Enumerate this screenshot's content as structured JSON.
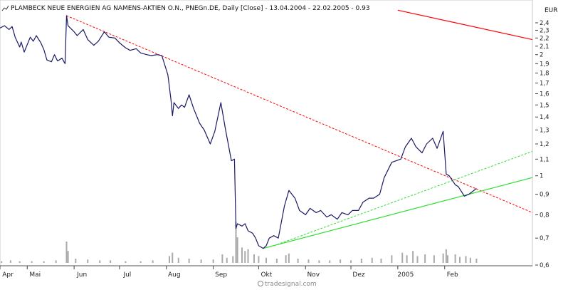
{
  "header": {
    "title": "PLAMBECK NEUE ENERGIEN AG NAMENS-AKTIEN O.N., PNEGn.DE, Daily [Close] - 13.04.2004 - 22.02.2005 - 0.93",
    "currency": "EUR"
  },
  "watermark": "tradesignal.com",
  "icon": "line-chart-icon",
  "colors": {
    "price": "#1a1a66",
    "resistance": "#ff0000",
    "support": "#33dd33",
    "volume": "#aaaaaa"
  },
  "chart_data": {
    "type": "line",
    "y_scale": "log",
    "y_ticks": [
      "0,6",
      "0,7",
      "0,8",
      "0,9",
      "1",
      "1,1",
      "1,2",
      "1,3",
      "1,4",
      "1,5",
      "1,6",
      "1,7",
      "1,8",
      "1,9",
      "2",
      "2,1",
      "2,2",
      "2,3",
      "2,4"
    ],
    "ylim": [
      0.6,
      2.5
    ],
    "x_ticks": [
      "Apr",
      "Mai",
      "Jun",
      "Jul",
      "Aug",
      "Sep",
      "Okt",
      "Nov",
      "Dez",
      "2005",
      "Feb"
    ],
    "series": [
      {
        "values": [
          [
            "2004-04-13",
            2.33
          ],
          [
            "2004-04-16",
            2.36
          ],
          [
            "2004-04-19",
            2.31
          ],
          [
            "2004-04-21",
            2.35
          ],
          [
            "2004-04-23",
            2.21
          ],
          [
            "2004-04-26",
            2.09
          ],
          [
            "2004-04-27",
            2.15
          ],
          [
            "2004-04-29",
            2.03
          ],
          [
            "2004-05-03",
            2.21
          ],
          [
            "2004-05-05",
            2.16
          ],
          [
            "2004-05-07",
            2.23
          ],
          [
            "2004-05-10",
            2.14
          ],
          [
            "2004-05-12",
            2.06
          ],
          [
            "2004-05-14",
            1.94
          ],
          [
            "2004-05-17",
            1.92
          ],
          [
            "2004-05-19",
            2.0
          ],
          [
            "2004-05-21",
            1.93
          ],
          [
            "2004-05-24",
            1.96
          ],
          [
            "2004-05-26",
            1.9
          ],
          [
            "2004-05-27",
            2.5
          ],
          [
            "2004-05-28",
            2.36
          ],
          [
            "2004-06-01",
            2.28
          ],
          [
            "2004-06-03",
            2.23
          ],
          [
            "2004-06-07",
            2.31
          ],
          [
            "2004-06-10",
            2.18
          ],
          [
            "2004-06-14",
            2.11
          ],
          [
            "2004-06-17",
            2.16
          ],
          [
            "2004-06-21",
            2.28
          ],
          [
            "2004-06-24",
            2.21
          ],
          [
            "2004-06-28",
            2.2
          ],
          [
            "2004-07-01",
            2.14
          ],
          [
            "2004-07-05",
            2.08
          ],
          [
            "2004-07-08",
            2.05
          ],
          [
            "2004-07-12",
            2.07
          ],
          [
            "2004-07-15",
            2.02
          ],
          [
            "2004-07-19",
            2.0
          ],
          [
            "2004-07-22",
            1.99
          ],
          [
            "2004-07-26",
            2.0
          ],
          [
            "2004-07-29",
            1.99
          ],
          [
            "2004-08-02",
            1.78
          ],
          [
            "2004-08-04",
            1.55
          ],
          [
            "2004-08-05",
            1.41
          ],
          [
            "2004-08-06",
            1.52
          ],
          [
            "2004-08-09",
            1.47
          ],
          [
            "2004-08-11",
            1.5
          ],
          [
            "2004-08-13",
            1.48
          ],
          [
            "2004-08-16",
            1.59
          ],
          [
            "2004-08-19",
            1.47
          ],
          [
            "2004-08-23",
            1.35
          ],
          [
            "2004-08-26",
            1.3
          ],
          [
            "2004-08-30",
            1.2
          ],
          [
            "2004-09-02",
            1.29
          ],
          [
            "2004-09-06",
            1.52
          ],
          [
            "2004-09-09",
            1.31
          ],
          [
            "2004-09-13",
            1.09
          ],
          [
            "2004-09-15",
            1.1
          ],
          [
            "2004-09-16",
            0.74
          ],
          [
            "2004-09-17",
            0.76
          ],
          [
            "2004-09-20",
            0.75
          ],
          [
            "2004-09-22",
            0.76
          ],
          [
            "2004-09-24",
            0.73
          ],
          [
            "2004-09-27",
            0.72
          ],
          [
            "2004-09-29",
            0.7
          ],
          [
            "2004-10-01",
            0.67
          ],
          [
            "2004-10-04",
            0.66
          ],
          [
            "2004-10-06",
            0.67
          ],
          [
            "2004-10-08",
            0.7
          ],
          [
            "2004-10-11",
            0.71
          ],
          [
            "2004-10-14",
            0.7
          ],
          [
            "2004-10-18",
            0.84
          ],
          [
            "2004-10-21",
            0.92
          ],
          [
            "2004-10-25",
            0.88
          ],
          [
            "2004-10-28",
            0.82
          ],
          [
            "2004-11-01",
            0.8
          ],
          [
            "2004-11-04",
            0.83
          ],
          [
            "2004-11-08",
            0.81
          ],
          [
            "2004-11-11",
            0.82
          ],
          [
            "2004-11-15",
            0.79
          ],
          [
            "2004-11-18",
            0.8
          ],
          [
            "2004-11-22",
            0.78
          ],
          [
            "2004-11-25",
            0.81
          ],
          [
            "2004-11-29",
            0.8
          ],
          [
            "2004-12-02",
            0.82
          ],
          [
            "2004-12-06",
            0.82
          ],
          [
            "2004-12-09",
            0.86
          ],
          [
            "2004-12-13",
            0.88
          ],
          [
            "2004-12-16",
            0.88
          ],
          [
            "2004-12-20",
            0.9
          ],
          [
            "2004-12-23",
            0.99
          ],
          [
            "2004-12-28",
            1.08
          ],
          [
            "2005-01-03",
            1.1
          ],
          [
            "2005-01-06",
            1.18
          ],
          [
            "2005-01-10",
            1.24
          ],
          [
            "2005-01-13",
            1.18
          ],
          [
            "2005-01-17",
            1.14
          ],
          [
            "2005-01-20",
            1.2
          ],
          [
            "2005-01-24",
            1.24
          ],
          [
            "2005-01-27",
            1.17
          ],
          [
            "2005-01-31",
            1.29
          ],
          [
            "2005-02-02",
            1.01
          ],
          [
            "2005-02-04",
            1.0
          ],
          [
            "2005-02-08",
            0.95
          ],
          [
            "2005-02-10",
            0.94
          ],
          [
            "2005-02-14",
            0.89
          ],
          [
            "2005-02-17",
            0.9
          ],
          [
            "2005-02-22",
            0.93
          ]
        ]
      }
    ],
    "trendlines": [
      {
        "style": "dashed",
        "color": "red",
        "from": [
          "2004-05-27",
          2.5
        ],
        "to": [
          "2005-03-31",
          0.81
        ]
      },
      {
        "style": "solid",
        "color": "red",
        "from": [
          "2005-01-01",
          2.58
        ],
        "to": [
          "2005-03-31",
          2.18
        ]
      },
      {
        "style": "solid",
        "color": "green",
        "from": [
          "2004-10-04",
          0.66
        ],
        "to": [
          "2005-03-31",
          0.99
        ]
      },
      {
        "style": "dashed",
        "color": "green",
        "from": [
          "2004-10-11",
          0.67
        ],
        "to": [
          "2005-03-31",
          1.15
        ]
      }
    ],
    "volume": [
      [
        "2004-04-14",
        2
      ],
      [
        "2004-04-20",
        3
      ],
      [
        "2004-04-26",
        2
      ],
      [
        "2004-05-04",
        2
      ],
      [
        "2004-05-12",
        2
      ],
      [
        "2004-05-20",
        3
      ],
      [
        "2004-05-27",
        25
      ],
      [
        "2004-05-28",
        14
      ],
      [
        "2004-06-02",
        5
      ],
      [
        "2004-06-10",
        4
      ],
      [
        "2004-06-18",
        3
      ],
      [
        "2004-06-25",
        3
      ],
      [
        "2004-07-05",
        2
      ],
      [
        "2004-07-15",
        2
      ],
      [
        "2004-07-23",
        3
      ],
      [
        "2004-08-03",
        8
      ],
      [
        "2004-08-05",
        12
      ],
      [
        "2004-08-09",
        6
      ],
      [
        "2004-08-16",
        5
      ],
      [
        "2004-08-24",
        4
      ],
      [
        "2004-09-01",
        4
      ],
      [
        "2004-09-07",
        10
      ],
      [
        "2004-09-10",
        6
      ],
      [
        "2004-09-14",
        8
      ],
      [
        "2004-09-16",
        48
      ],
      [
        "2004-09-17",
        30
      ],
      [
        "2004-09-20",
        18
      ],
      [
        "2004-09-22",
        14
      ],
      [
        "2004-09-24",
        16
      ],
      [
        "2004-09-28",
        10
      ],
      [
        "2004-10-01",
        8
      ],
      [
        "2004-10-06",
        6
      ],
      [
        "2004-10-13",
        5
      ],
      [
        "2004-10-19",
        9
      ],
      [
        "2004-10-21",
        11
      ],
      [
        "2004-10-27",
        5
      ],
      [
        "2004-11-03",
        4
      ],
      [
        "2004-11-10",
        3
      ],
      [
        "2004-11-17",
        3
      ],
      [
        "2004-11-24",
        4
      ],
      [
        "2004-12-01",
        3
      ],
      [
        "2004-12-08",
        5
      ],
      [
        "2004-12-15",
        6
      ],
      [
        "2004-12-21",
        5
      ],
      [
        "2004-12-28",
        9
      ],
      [
        "2005-01-04",
        12
      ],
      [
        "2005-01-07",
        9
      ],
      [
        "2005-01-11",
        14
      ],
      [
        "2005-01-14",
        8
      ],
      [
        "2005-01-19",
        10
      ],
      [
        "2005-01-25",
        9
      ],
      [
        "2005-01-31",
        11
      ],
      [
        "2005-02-02",
        16
      ],
      [
        "2005-02-03",
        9
      ],
      [
        "2005-02-08",
        10
      ],
      [
        "2005-02-11",
        7
      ],
      [
        "2005-02-15",
        8
      ],
      [
        "2005-02-18",
        6
      ],
      [
        "2005-02-22",
        5
      ]
    ]
  }
}
